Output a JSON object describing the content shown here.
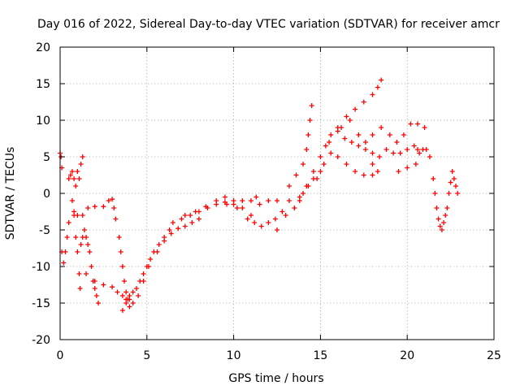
{
  "chart_data": {
    "type": "scatter",
    "title": "Day 016 of 2022, Sidereal Day-to-day VTEC variation (SDTVAR) for receiver amcr",
    "xlabel": "GPS time / hours",
    "ylabel": "SDTVAR / TECUs",
    "xlim": [
      0,
      25
    ],
    "ylim": [
      -20,
      20
    ],
    "xticks": [
      "0",
      "5",
      "10",
      "15",
      "20",
      "25"
    ],
    "yticks": [
      "-20",
      "-15",
      "-10",
      "-5",
      "0",
      "5",
      "10",
      "15",
      "20"
    ],
    "grid": true,
    "marker": "plus",
    "color": "#ff0000",
    "series": [
      {
        "values": [
          [
            0.0,
            5.5
          ],
          [
            0.05,
            5.0
          ],
          [
            0.1,
            3.5
          ],
          [
            0.1,
            -8.0
          ],
          [
            0.2,
            -9.5
          ],
          [
            0.3,
            -8.0
          ],
          [
            0.4,
            -6.0
          ],
          [
            0.5,
            -4.0
          ],
          [
            0.5,
            2.0
          ],
          [
            0.6,
            2.5
          ],
          [
            0.7,
            3.0
          ],
          [
            0.8,
            2.0
          ],
          [
            0.9,
            1.0
          ],
          [
            1.0,
            3.0
          ],
          [
            1.1,
            2.0
          ],
          [
            1.2,
            4.0
          ],
          [
            1.3,
            5.0
          ],
          [
            0.7,
            -1.0
          ],
          [
            0.8,
            -3.0
          ],
          [
            0.9,
            -6.0
          ],
          [
            1.0,
            -8.0
          ],
          [
            1.1,
            -11.0
          ],
          [
            1.15,
            -13.0
          ],
          [
            1.2,
            -7.0
          ],
          [
            1.3,
            -6.0
          ],
          [
            1.4,
            -5.0
          ],
          [
            1.5,
            -6.0
          ],
          [
            1.6,
            -7.0
          ],
          [
            1.7,
            -8.0
          ],
          [
            1.8,
            -10.0
          ],
          [
            1.9,
            -12.0
          ],
          [
            2.0,
            -13.0
          ],
          [
            2.1,
            -14.0
          ],
          [
            2.2,
            -15.0
          ],
          [
            0.8,
            -2.5
          ],
          [
            1.0,
            -3.0
          ],
          [
            1.3,
            -3.0
          ],
          [
            1.6,
            -2.0
          ],
          [
            2.0,
            -1.8
          ],
          [
            2.5,
            -1.8
          ],
          [
            2.8,
            -1.0
          ],
          [
            3.0,
            -0.8
          ],
          [
            3.1,
            -2.0
          ],
          [
            3.2,
            -3.5
          ],
          [
            3.4,
            -6.0
          ],
          [
            3.5,
            -8.0
          ],
          [
            3.6,
            -10.0
          ],
          [
            3.7,
            -12.0
          ],
          [
            3.8,
            -13.5
          ],
          [
            3.9,
            -14.5
          ],
          [
            4.0,
            -15.5
          ],
          [
            1.5,
            -11.0
          ],
          [
            2.0,
            -12.0
          ],
          [
            2.5,
            -12.5
          ],
          [
            3.0,
            -12.8
          ],
          [
            3.3,
            -13.5
          ],
          [
            3.6,
            -14.0
          ],
          [
            3.8,
            -14.5
          ],
          [
            4.0,
            -14.0
          ],
          [
            3.6,
            -16.0
          ],
          [
            3.8,
            -15.0
          ],
          [
            4.0,
            -14.5
          ],
          [
            4.2,
            -13.5
          ],
          [
            4.4,
            -13.0
          ],
          [
            4.6,
            -12.0
          ],
          [
            4.8,
            -11.0
          ],
          [
            5.0,
            -10.0
          ],
          [
            4.2,
            -15.0
          ],
          [
            4.5,
            -14.0
          ],
          [
            4.8,
            -12.0
          ],
          [
            5.1,
            -10.0
          ],
          [
            5.4,
            -8.0
          ],
          [
            5.7,
            -7.0
          ],
          [
            6.0,
            -6.0
          ],
          [
            6.3,
            -5.0
          ],
          [
            5.2,
            -9.0
          ],
          [
            5.6,
            -8.0
          ],
          [
            6.0,
            -6.5
          ],
          [
            6.4,
            -5.5
          ],
          [
            6.8,
            -4.8
          ],
          [
            7.2,
            -4.5
          ],
          [
            7.6,
            -4.0
          ],
          [
            8.0,
            -3.5
          ],
          [
            6.5,
            -4.0
          ],
          [
            7.0,
            -3.5
          ],
          [
            7.5,
            -3.0
          ],
          [
            8.0,
            -2.5
          ],
          [
            8.5,
            -2.0
          ],
          [
            9.0,
            -1.5
          ],
          [
            9.5,
            -1.2
          ],
          [
            10.0,
            -1.5
          ],
          [
            7.2,
            -3.0
          ],
          [
            7.8,
            -2.5
          ],
          [
            8.4,
            -1.8
          ],
          [
            9.0,
            -1.0
          ],
          [
            9.5,
            -0.5
          ],
          [
            10.0,
            -1.0
          ],
          [
            10.5,
            -2.0
          ],
          [
            11.0,
            -3.0
          ],
          [
            9.6,
            -1.5
          ],
          [
            10.2,
            -2.0
          ],
          [
            10.8,
            -3.5
          ],
          [
            11.2,
            -4.0
          ],
          [
            11.6,
            -4.5
          ],
          [
            12.0,
            -4.0
          ],
          [
            12.4,
            -3.5
          ],
          [
            12.8,
            -2.5
          ],
          [
            10.5,
            -1.0
          ],
          [
            11.0,
            -1.0
          ],
          [
            11.5,
            -1.5
          ],
          [
            12.0,
            -1.0
          ],
          [
            11.3,
            -0.5
          ],
          [
            12.5,
            -1.0
          ],
          [
            12.5,
            -5.0
          ],
          [
            13.0,
            -3.0
          ],
          [
            13.2,
            -1.0
          ],
          [
            13.5,
            -2.0
          ],
          [
            13.8,
            -1.0
          ],
          [
            14.0,
            0.0
          ],
          [
            14.3,
            1.0
          ],
          [
            14.6,
            2.0
          ],
          [
            15.0,
            3.0
          ],
          [
            13.2,
            1.0
          ],
          [
            13.6,
            2.5
          ],
          [
            14.0,
            4.0
          ],
          [
            14.2,
            6.0
          ],
          [
            14.3,
            8.0
          ],
          [
            14.4,
            10.0
          ],
          [
            14.5,
            12.0
          ],
          [
            13.8,
            -0.5
          ],
          [
            14.2,
            1.0
          ],
          [
            14.6,
            3.0
          ],
          [
            15.0,
            5.0
          ],
          [
            15.3,
            6.5
          ],
          [
            15.6,
            8.0
          ],
          [
            16.0,
            8.5
          ],
          [
            16.4,
            7.5
          ],
          [
            16.8,
            7.0
          ],
          [
            17.2,
            6.5
          ],
          [
            17.6,
            6.0
          ],
          [
            18.0,
            5.5
          ],
          [
            14.8,
            2.0
          ],
          [
            15.2,
            4.0
          ],
          [
            15.6,
            5.5
          ],
          [
            16.0,
            5.0
          ],
          [
            16.5,
            4.0
          ],
          [
            17.0,
            3.0
          ],
          [
            17.5,
            2.5
          ],
          [
            18.0,
            2.5
          ],
          [
            18.3,
            3.0
          ],
          [
            15.5,
            7.0
          ],
          [
            16.0,
            9.0
          ],
          [
            16.5,
            10.5
          ],
          [
            17.0,
            11.5
          ],
          [
            17.5,
            12.5
          ],
          [
            18.0,
            13.5
          ],
          [
            18.3,
            14.5
          ],
          [
            18.5,
            15.5
          ],
          [
            16.2,
            9.0
          ],
          [
            16.7,
            10.0
          ],
          [
            17.2,
            8.0
          ],
          [
            17.6,
            7.0
          ],
          [
            18.0,
            8.0
          ],
          [
            18.5,
            9.0
          ],
          [
            19.0,
            8.0
          ],
          [
            19.4,
            7.0
          ],
          [
            19.8,
            8.0
          ],
          [
            20.2,
            9.5
          ],
          [
            20.6,
            9.5
          ],
          [
            21.0,
            9.0
          ],
          [
            18.0,
            4.0
          ],
          [
            18.4,
            5.0
          ],
          [
            18.8,
            6.0
          ],
          [
            19.2,
            5.5
          ],
          [
            19.6,
            5.5
          ],
          [
            20.0,
            6.0
          ],
          [
            20.4,
            6.5
          ],
          [
            20.6,
            6.0
          ],
          [
            19.5,
            3.0
          ],
          [
            20.0,
            3.5
          ],
          [
            20.5,
            4.0
          ],
          [
            20.7,
            5.5
          ],
          [
            20.9,
            6.0
          ],
          [
            21.1,
            6.0
          ],
          [
            21.3,
            5.0
          ],
          [
            21.5,
            2.0
          ],
          [
            21.6,
            0.0
          ],
          [
            21.7,
            -2.0
          ],
          [
            21.8,
            -3.5
          ],
          [
            21.9,
            -4.5
          ],
          [
            22.0,
            -5.0
          ],
          [
            22.1,
            -4.0
          ],
          [
            22.2,
            -3.0
          ],
          [
            22.3,
            -2.0
          ],
          [
            22.4,
            0.0
          ],
          [
            22.5,
            1.5
          ],
          [
            22.6,
            3.0
          ],
          [
            22.7,
            2.0
          ],
          [
            22.8,
            1.0
          ],
          [
            22.9,
            0.0
          ]
        ]
      }
    ]
  }
}
